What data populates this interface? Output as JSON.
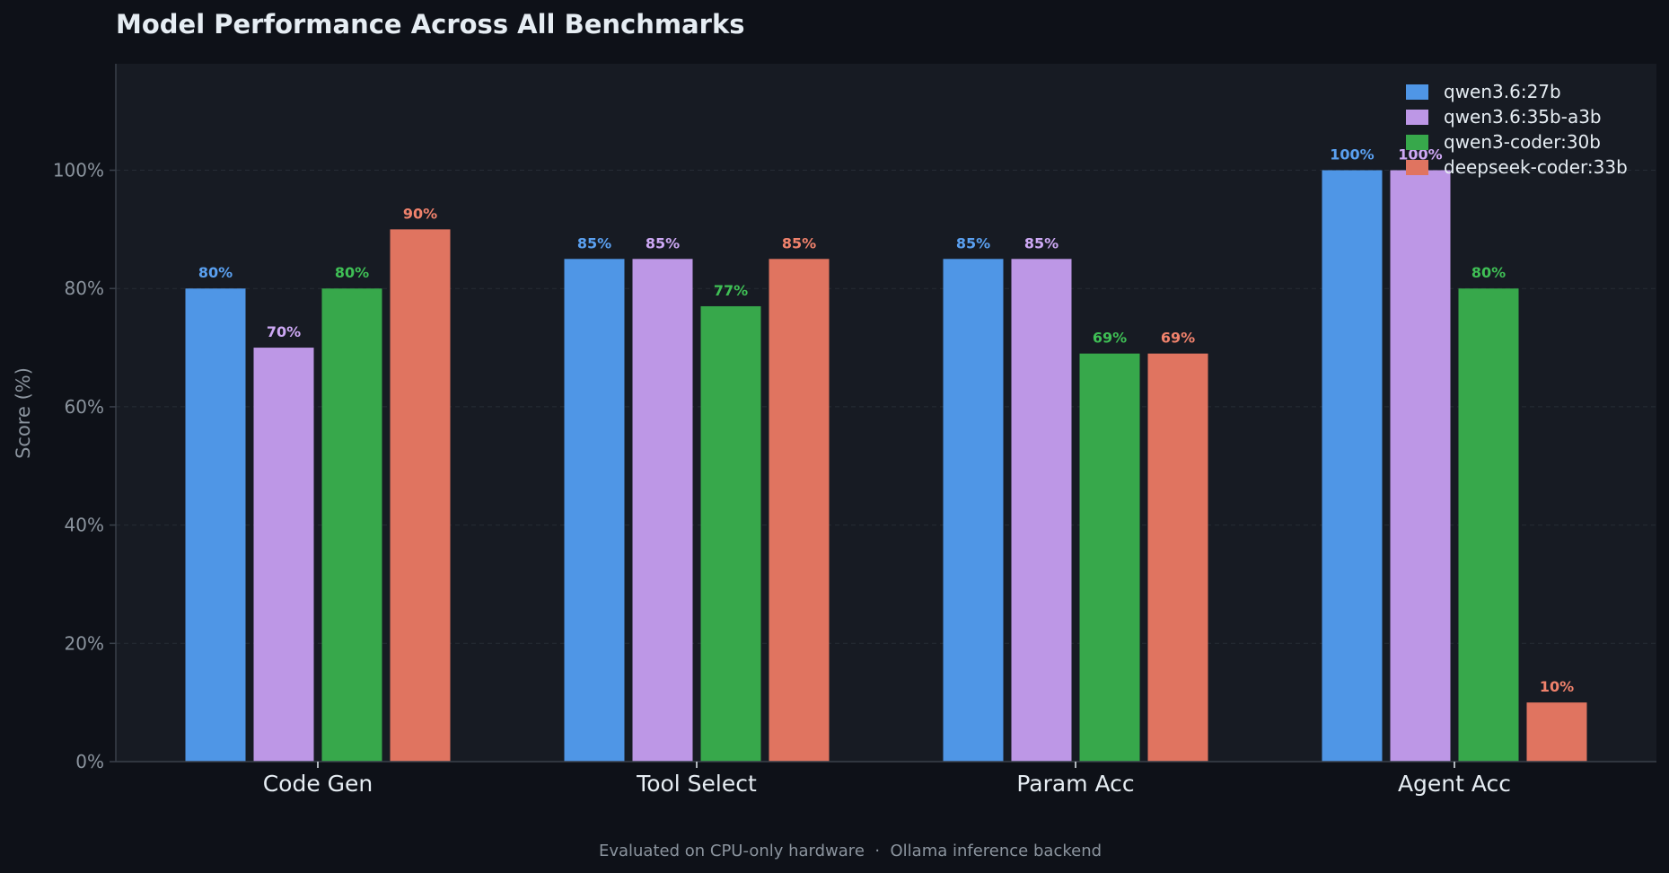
{
  "chart_data": {
    "type": "bar",
    "title": "Model Performance Across All Benchmarks",
    "ylabel": "Score (%)",
    "xlabel": "",
    "footnote": "Evaluated on CPU-only hardware  ·  Ollama inference backend",
    "categories": [
      "Code Gen",
      "Tool Select",
      "Param Acc",
      "Agent Acc"
    ],
    "ylim": [
      0,
      118
    ],
    "yticks": [
      0,
      20,
      40,
      60,
      80,
      100
    ],
    "ytick_labels": [
      "0%",
      "20%",
      "40%",
      "60%",
      "80%",
      "100%"
    ],
    "grid": true,
    "legend_position": "top-right",
    "series": [
      {
        "name": "qwen3.6:27b",
        "color": "#4f96e6",
        "label_color": "#5aa0f0",
        "values": [
          80,
          85,
          85,
          100
        ],
        "labels": [
          "80%",
          "85%",
          "85%",
          "100%"
        ]
      },
      {
        "name": "qwen3.6:35b-a3b",
        "color": "#bd97e6",
        "label_color": "#cda8f4",
        "values": [
          70,
          85,
          85,
          100
        ],
        "labels": [
          "70%",
          "85%",
          "85%",
          "100%"
        ]
      },
      {
        "name": "qwen3-coder:30b",
        "color": "#37a84b",
        "label_color": "#3fbf55",
        "values": [
          80,
          77,
          69,
          80
        ],
        "labels": [
          "80%",
          "77%",
          "69%",
          "80%"
        ]
      },
      {
        "name": "deepseek-coder:33b",
        "color": "#e07460",
        "label_color": "#f0826c",
        "values": [
          90,
          85,
          69,
          10
        ],
        "labels": [
          "90%",
          "85%",
          "69%",
          "10%"
        ]
      }
    ],
    "colors": {
      "background": "#0e1118",
      "plot_background": "#171b23",
      "text": "#e6edf3",
      "muted_text": "#8b949e",
      "grid": "#262c35",
      "axis": "#3a414b"
    }
  }
}
